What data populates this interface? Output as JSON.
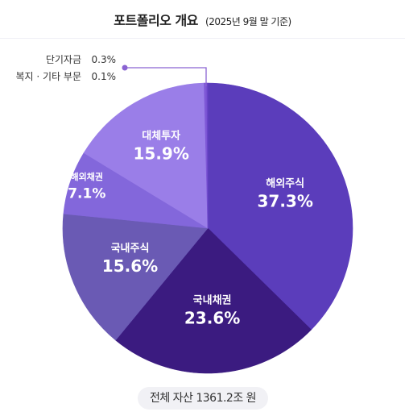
{
  "header": {
    "title": "포트폴리오 개요",
    "subtitle": "(2025년 9월 말 기준)"
  },
  "chart_data": {
    "type": "pie",
    "title": "포트폴리오 개요",
    "subtitle": "(2025년 9월 말 기준)",
    "start": "12 o'clock",
    "direction": "clockwise",
    "slices": [
      {
        "label": "해외주식",
        "value": 37.3,
        "value_label": "37.3%",
        "color": "#5b3dbb"
      },
      {
        "label": "국내채권",
        "value": 23.6,
        "value_label": "23.6%",
        "color": "#3b1b80"
      },
      {
        "label": "국내주식",
        "value": 15.6,
        "value_label": "15.6%",
        "color": "#6a5ab4"
      },
      {
        "label": "해외채권",
        "value": 7.1,
        "value_label": "7.1%",
        "color": "#8367db"
      },
      {
        "label": "대체투자",
        "value": 15.9,
        "value_label": "15.9%",
        "color": "#9a7ee8"
      },
      {
        "label": "단기자금",
        "value": 0.3,
        "value_label": "0.3%",
        "color": "#7e58d6"
      },
      {
        "label": "복지 · 기타 부문",
        "value": 0.1,
        "value_label": "0.1%",
        "color": "#6b45c9"
      }
    ],
    "callout_color": "#8a63d2"
  },
  "footer": {
    "total": "전체 자산 1361.2조 원"
  }
}
